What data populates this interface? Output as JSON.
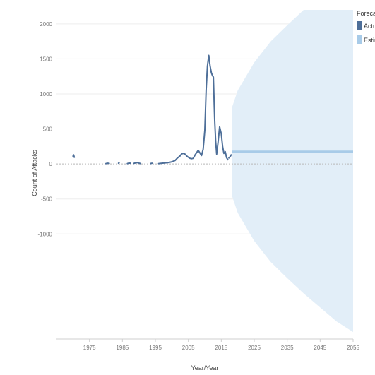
{
  "chart_data": {
    "type": "line",
    "title": "",
    "xlabel": "Year/Year",
    "ylabel": "Count of Attacks",
    "xlim": [
      1965,
      2055
    ],
    "ylim": [
      -2500,
      2200
    ],
    "x_ticks": [
      {
        "value": 1975,
        "label": "1975"
      },
      {
        "value": 1985,
        "label": "1985"
      },
      {
        "value": 1995,
        "label": "1995"
      },
      {
        "value": 2005,
        "label": "2005"
      },
      {
        "value": 2015,
        "label": "2015"
      },
      {
        "value": 2025,
        "label": "2025"
      },
      {
        "value": 2035,
        "label": "2035"
      },
      {
        "value": 2045,
        "label": "2045"
      },
      {
        "value": 2055,
        "label": "2055"
      }
    ],
    "y_ticks": [
      {
        "value": 2000,
        "label": "2000"
      },
      {
        "value": 1500,
        "label": "1500"
      },
      {
        "value": 1000,
        "label": "1000"
      },
      {
        "value": 500,
        "label": "500"
      },
      {
        "value": 0,
        "label": "0"
      },
      {
        "value": -500,
        "label": "-500"
      },
      {
        "value": -1000,
        "label": "-1000"
      }
    ],
    "grid": true,
    "legend": {
      "title": "Forecast indicator",
      "position": "right",
      "entries": [
        {
          "label": "Actual",
          "color": "#4e6f99"
        },
        {
          "label": "Estimate",
          "color": "#a8cbe8"
        }
      ]
    },
    "series": [
      {
        "name": "Actual",
        "color": "#4e6f99",
        "segments": [
          [
            [
              1970,
              110
            ],
            [
              1970.2,
              130
            ],
            [
              1970.4,
              95
            ]
          ],
          [
            [
              1980,
              5
            ],
            [
              1980.5,
              10
            ],
            [
              1981,
              8
            ]
          ],
          [
            [
              1983.8,
              10
            ],
            [
              1984,
              18
            ]
          ],
          [
            [
              1986.5,
              5
            ],
            [
              1987,
              12
            ],
            [
              1987.5,
              10
            ]
          ],
          [
            [
              1988.5,
              8
            ],
            [
              1989,
              15
            ],
            [
              1989.5,
              20
            ],
            [
              1990,
              12
            ],
            [
              1990.5,
              5
            ]
          ],
          [
            [
              1993.5,
              5
            ],
            [
              1994,
              10
            ]
          ],
          [
            [
              1996,
              5
            ],
            [
              1997,
              10
            ],
            [
              1998,
              15
            ],
            [
              1999,
              20
            ],
            [
              2000,
              30
            ],
            [
              2001,
              50
            ],
            [
              2001.7,
              85
            ],
            [
              2002.4,
              110
            ],
            [
              2003,
              145
            ],
            [
              2003.6,
              150
            ],
            [
              2004,
              140
            ],
            [
              2004.6,
              110
            ],
            [
              2005,
              95
            ],
            [
              2005.5,
              80
            ],
            [
              2006,
              75
            ],
            [
              2006.5,
              80
            ],
            [
              2007,
              125
            ],
            [
              2007.5,
              160
            ],
            [
              2008,
              195
            ],
            [
              2008.6,
              150
            ],
            [
              2009,
              120
            ],
            [
              2009.5,
              210
            ],
            [
              2010,
              480
            ],
            [
              2010.4,
              1050
            ],
            [
              2010.8,
              1400
            ],
            [
              2011.2,
              1550
            ],
            [
              2011.6,
              1400
            ],
            [
              2012,
              1300
            ],
            [
              2012.3,
              1265
            ],
            [
              2012.6,
              1240
            ],
            [
              2013,
              620
            ],
            [
              2013.3,
              320
            ],
            [
              2013.6,
              140
            ],
            [
              2014,
              300
            ],
            [
              2014.5,
              530
            ],
            [
              2015,
              430
            ],
            [
              2015.4,
              250
            ],
            [
              2015.8,
              150
            ],
            [
              2016.2,
              175
            ],
            [
              2016.6,
              90
            ],
            [
              2017,
              60
            ]
          ],
          [
            [
              2017.3,
              85
            ],
            [
              2017.7,
              105
            ],
            [
              2018,
              130
            ]
          ]
        ]
      },
      {
        "name": "Estimate",
        "color": "#a8cbe8",
        "x": [
          2018.2,
          2020,
          2025,
          2030,
          2035,
          2040,
          2045,
          2050,
          2055
        ],
        "values": [
          175,
          175,
          175,
          175,
          175,
          175,
          175,
          175,
          175
        ],
        "band_x": [
          2018.2,
          2020,
          2025,
          2030,
          2035,
          2040,
          2045,
          2050,
          2055
        ],
        "band_upper": [
          800,
          1050,
          1450,
          1750,
          1980,
          2200,
          2200,
          2200,
          2200
        ],
        "band_lower": [
          -450,
          -700,
          -1100,
          -1400,
          -1630,
          -1850,
          -2050,
          -2250,
          -2400
        ]
      }
    ]
  }
}
